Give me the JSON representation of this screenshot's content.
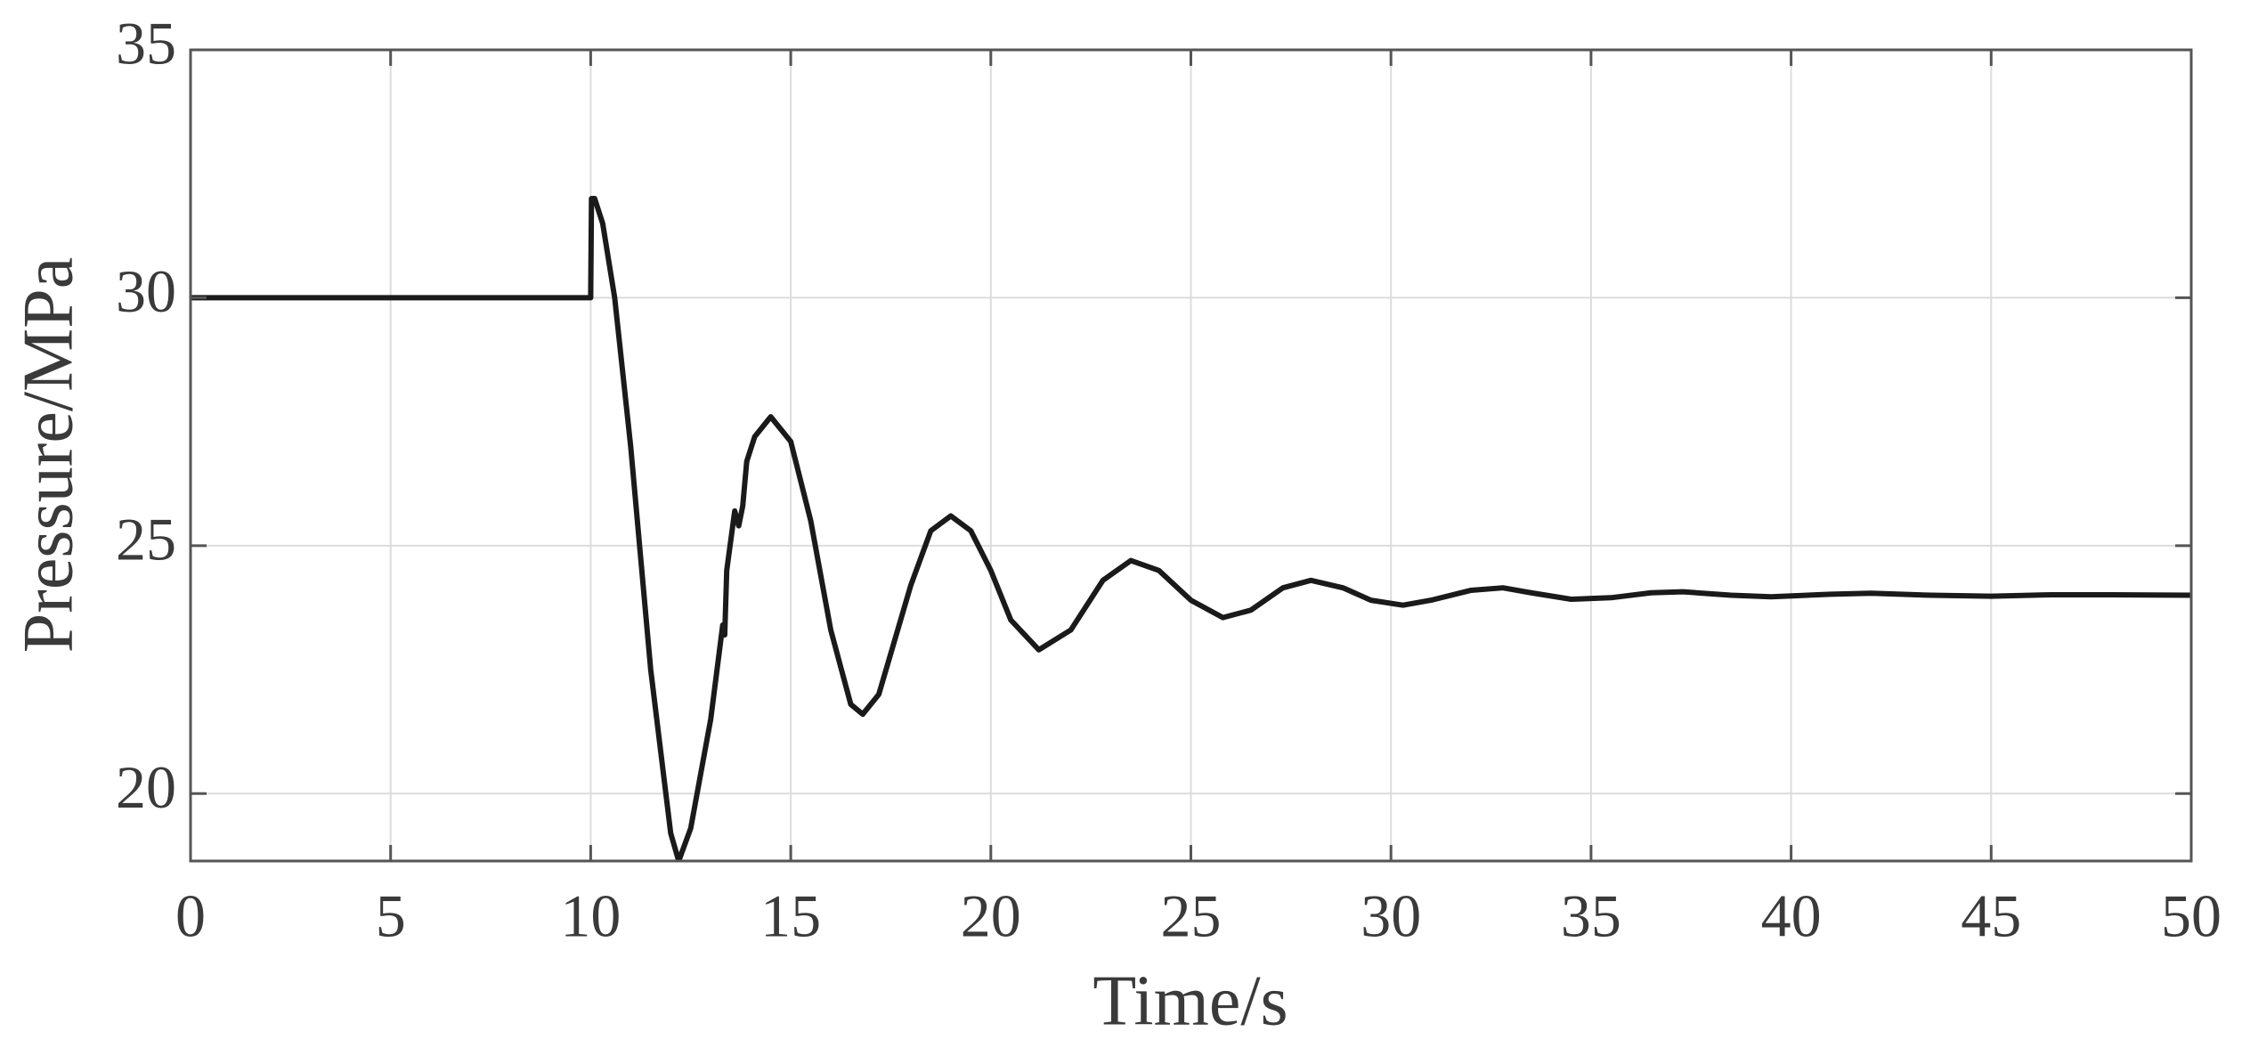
{
  "chart_data": {
    "type": "line",
    "x_label": "Time/s",
    "y_label": "Pressure/MPa",
    "x": [
      0,
      10,
      10.02,
      10.1,
      10.3,
      10.6,
      11,
      11.5,
      12,
      12.2,
      12.5,
      13,
      13.3,
      13.35,
      13.4,
      13.6,
      13.7,
      13.8,
      13.9,
      14.1,
      14.5,
      15,
      15.5,
      16,
      16.5,
      16.8,
      17.2,
      18,
      18.5,
      19,
      19.5,
      20,
      20.5,
      21.2,
      22,
      22.8,
      23.5,
      24.2,
      25,
      25.8,
      26.5,
      27.3,
      28,
      28.8,
      29.5,
      30.3,
      31,
      32,
      32.8,
      33.5,
      34.5,
      35.5,
      36.5,
      37.3,
      38.5,
      39.5,
      41,
      42,
      43.5,
      45,
      46.5,
      48,
      50
    ],
    "series": [
      {
        "name": "Pressure",
        "color": "#1a1a1a",
        "values": [
          30,
          30,
          32,
          32,
          31.5,
          30,
          27,
          22.5,
          19.2,
          18.64,
          19.3,
          21.5,
          23.4,
          23.2,
          24.5,
          25.7,
          25.4,
          25.8,
          26.7,
          27.2,
          27.6,
          27.1,
          25.5,
          23.3,
          21.8,
          21.6,
          22,
          24.2,
          25.3,
          25.6,
          25.3,
          24.5,
          23.5,
          22.9,
          23.3,
          24.3,
          24.7,
          24.5,
          23.9,
          23.55,
          23.7,
          24.15,
          24.3,
          24.15,
          23.9,
          23.8,
          23.9,
          24.1,
          24.15,
          24.05,
          23.92,
          23.95,
          24.05,
          24.07,
          24.0,
          23.97,
          24.02,
          24.04,
          24.0,
          23.98,
          24.01,
          24.01,
          24.0
        ]
      }
    ],
    "xlim": [
      0,
      50
    ],
    "ylim": [
      18.64,
      35
    ],
    "xticks": [
      0,
      5,
      10,
      15,
      20,
      25,
      30,
      35,
      40,
      45,
      50
    ],
    "yticks": [
      20,
      25,
      30,
      35
    ],
    "grid": true
  }
}
